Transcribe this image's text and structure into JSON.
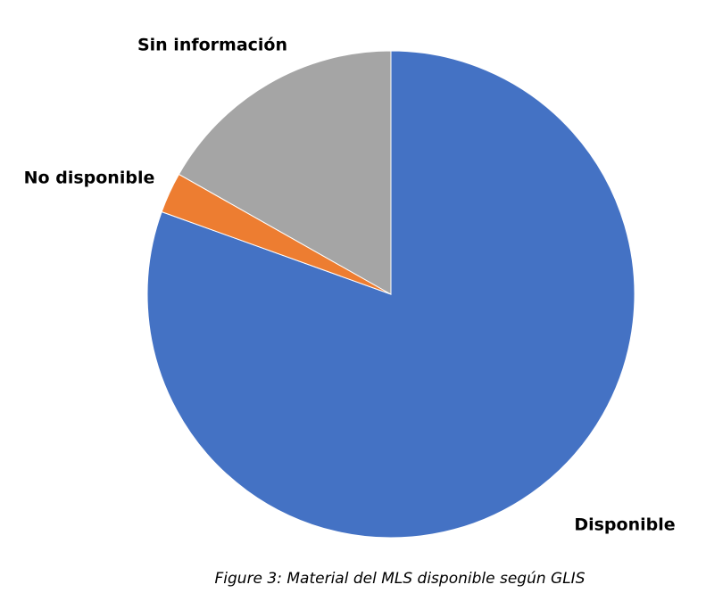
{
  "chart_data": {
    "type": "pie",
    "categories": [
      "Disponible",
      "No disponible",
      "Sin información"
    ],
    "values": [
      80.5,
      2.7,
      16.8
    ],
    "colors": [
      "#4472c4",
      "#ed7d31",
      "#a5a5a5"
    ],
    "start_angle": 0,
    "direction": "clockwise",
    "caption": "Figure 3: Material del MLS disponible según GLIS"
  }
}
